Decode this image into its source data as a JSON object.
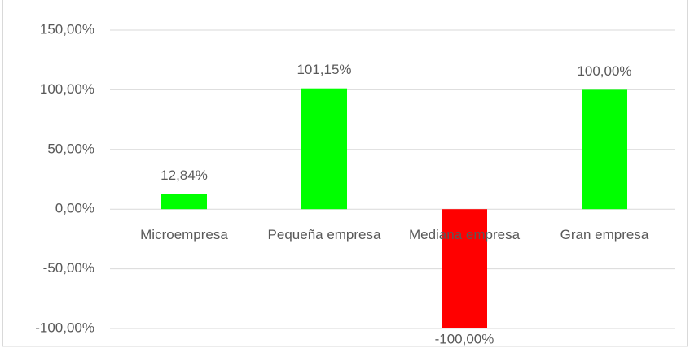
{
  "chart_data": {
    "type": "bar",
    "categories": [
      "Microempresa",
      "Pequeña empresa",
      "Mediana empresa",
      "Gran empresa"
    ],
    "values": [
      12.84,
      101.15,
      -100,
      100
    ],
    "value_labels": [
      "12,84%",
      "101,15%",
      "-100,00%",
      "100,00%"
    ],
    "colors": [
      "#00ff00",
      "#00ff00",
      "#ff0000",
      "#00ff00"
    ],
    "ylim": [
      -100,
      150
    ],
    "yticks": [
      {
        "value": -100,
        "label": "-100,00%"
      },
      {
        "value": -50,
        "label": "-50,00%"
      },
      {
        "value": 0,
        "label": "0,00%"
      },
      {
        "value": 50,
        "label": "50,00%"
      },
      {
        "value": 100,
        "label": "100,00%"
      },
      {
        "value": 150,
        "label": "150,00%"
      }
    ],
    "grid": true
  }
}
